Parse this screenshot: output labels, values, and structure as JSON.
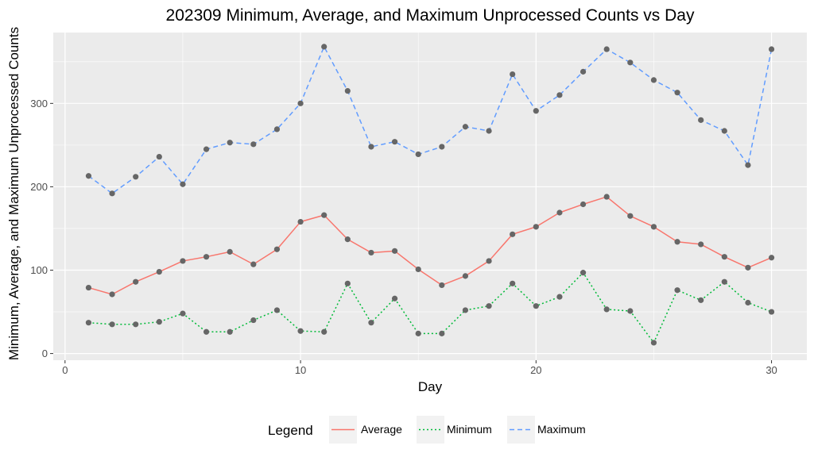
{
  "chart_data": {
    "type": "line",
    "title": "202309 Minimum, Average, and Maximum Unprocessed Counts vs Day",
    "xlabel": "Day",
    "ylabel": "Minimum, Average, and Maximum Unprocessed Counts",
    "xlim": [
      -0.5,
      31.5
    ],
    "ylim": [
      -8,
      385
    ],
    "x_ticks": [
      0,
      10,
      20,
      30
    ],
    "x_tick_labels": [
      "0",
      "10",
      "20",
      "30"
    ],
    "y_ticks": [
      0,
      100,
      200,
      300
    ],
    "y_tick_labels": [
      "0",
      "100",
      "200",
      "300"
    ],
    "grid": true,
    "background": "#ebebeb",
    "point_color": "#666666",
    "legend": {
      "title": "Legend",
      "position": "bottom",
      "entries": [
        "Average",
        "Minimum",
        "Maximum"
      ]
    },
    "x": [
      1,
      2,
      3,
      4,
      5,
      6,
      7,
      8,
      9,
      10,
      11,
      12,
      13,
      14,
      15,
      16,
      17,
      18,
      19,
      20,
      21,
      22,
      23,
      24,
      25,
      26,
      27,
      28,
      29,
      30
    ],
    "series": [
      {
        "name": "Average",
        "color": "#f8766d",
        "linestyle": "solid",
        "values": [
          79,
          71,
          86,
          98,
          111,
          116,
          122,
          107,
          125,
          158,
          166,
          137,
          121,
          123,
          101,
          82,
          93,
          111,
          143,
          152,
          169,
          179,
          188,
          165,
          152,
          134,
          131,
          116,
          103,
          115
        ]
      },
      {
        "name": "Minimum",
        "color": "#00ba38",
        "linestyle": "dotted",
        "values": [
          37,
          35,
          35,
          38,
          48,
          26,
          26,
          40,
          52,
          27,
          26,
          84,
          37,
          66,
          24,
          24,
          52,
          57,
          84,
          57,
          68,
          97,
          53,
          51,
          13,
          76,
          64,
          86,
          61,
          50
        ]
      },
      {
        "name": "Maximum",
        "color": "#619cff",
        "linestyle": "dashed",
        "values": [
          213,
          192,
          212,
          236,
          203,
          245,
          253,
          251,
          269,
          300,
          368,
          315,
          248,
          254,
          239,
          248,
          272,
          267,
          335,
          291,
          310,
          338,
          365,
          349,
          328,
          313,
          280,
          267,
          226,
          365
        ]
      }
    ]
  }
}
